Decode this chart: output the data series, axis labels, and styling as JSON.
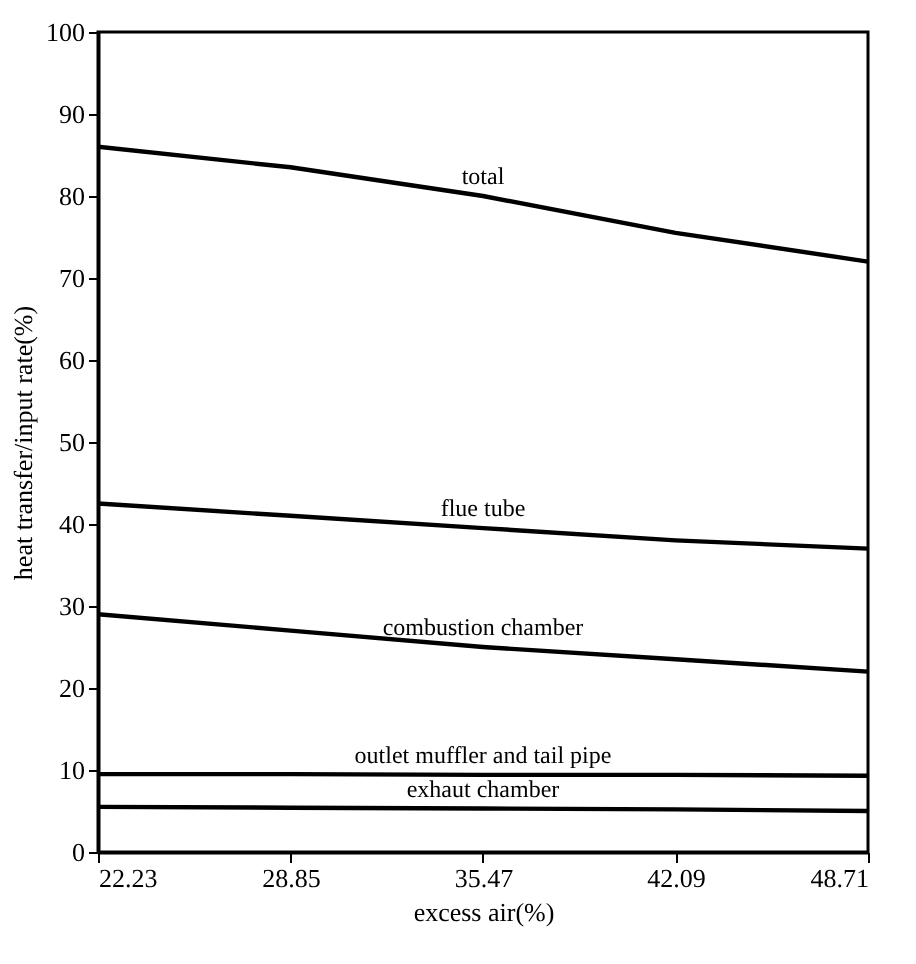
{
  "chart_data": {
    "type": "line",
    "xlabel": "excess air(%)",
    "ylabel": "heat transfer/input rate(%)",
    "x": [
      22.23,
      28.85,
      35.47,
      42.09,
      48.71
    ],
    "xlim": [
      22.23,
      48.71
    ],
    "xticks": [
      {
        "value": 22.23,
        "label": "22.23"
      },
      {
        "value": 28.85,
        "label": "28.85"
      },
      {
        "value": 35.47,
        "label": "35.47"
      },
      {
        "value": 42.09,
        "label": "42.09"
      },
      {
        "value": 48.71,
        "label": "48.71"
      }
    ],
    "ylim": [
      0,
      100
    ],
    "yticks": [
      0,
      10,
      20,
      30,
      40,
      50,
      60,
      70,
      80,
      90,
      100
    ],
    "grid": false,
    "legend": false,
    "marker": "none",
    "line_style": "solid",
    "series": [
      {
        "name": "total",
        "color": "#000000",
        "values": [
          86,
          83.5,
          80,
          75.5,
          72
        ]
      },
      {
        "name": "flue tube",
        "color": "#000000",
        "values": [
          42.5,
          41,
          39.5,
          38,
          37
        ]
      },
      {
        "name": "combustion chamber",
        "color": "#000000",
        "values": [
          29,
          27,
          25,
          23.5,
          22
        ]
      },
      {
        "name": "outlet muffler and tail pipe",
        "color": "#000000",
        "values": [
          9.5,
          9.5,
          9.4,
          9.4,
          9.3
        ]
      },
      {
        "name": "exhaut chamber",
        "color": "#000000",
        "values": [
          5.5,
          5.4,
          5.3,
          5.2,
          5
        ]
      }
    ]
  }
}
